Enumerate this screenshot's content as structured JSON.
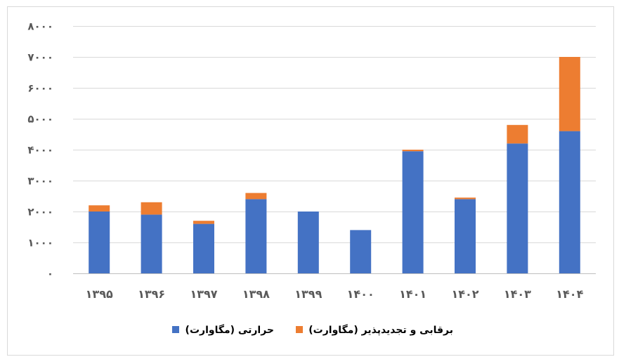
{
  "chart_data": {
    "type": "bar",
    "stacked": true,
    "categories": [
      "۱۳۹۵",
      "۱۳۹۶",
      "۱۳۹۷",
      "۱۳۹۸",
      "۱۳۹۹",
      "۱۴۰۰",
      "۱۴۰۱",
      "۱۴۰۲",
      "۱۴۰۳",
      "۱۴۰۴"
    ],
    "series": [
      {
        "name": "حرارتی (مگاوارت)",
        "color": "#4472C4",
        "values": [
          2000,
          1900,
          1600,
          2400,
          2000,
          1400,
          3950,
          2400,
          4200,
          4600
        ]
      },
      {
        "name": "برقابی و تجدیدپذیر (مگاوارت)",
        "color": "#ED7D31",
        "values": [
          200,
          400,
          100,
          200,
          0,
          0,
          50,
          50,
          600,
          2400
        ]
      }
    ],
    "ylim": [
      0,
      8000
    ],
    "yticks": [
      0,
      1000,
      2000,
      3000,
      4000,
      5000,
      6000,
      7000,
      8000
    ],
    "ytick_labels": [
      "۰",
      "۱۰۰۰",
      "۲۰۰۰",
      "۳۰۰۰",
      "۴۰۰۰",
      "۵۰۰۰",
      "۶۰۰۰",
      "۷۰۰۰",
      "۸۰۰۰"
    ],
    "title": "",
    "xlabel": "",
    "ylabel": "",
    "grid": true,
    "legend_position": "bottom"
  }
}
